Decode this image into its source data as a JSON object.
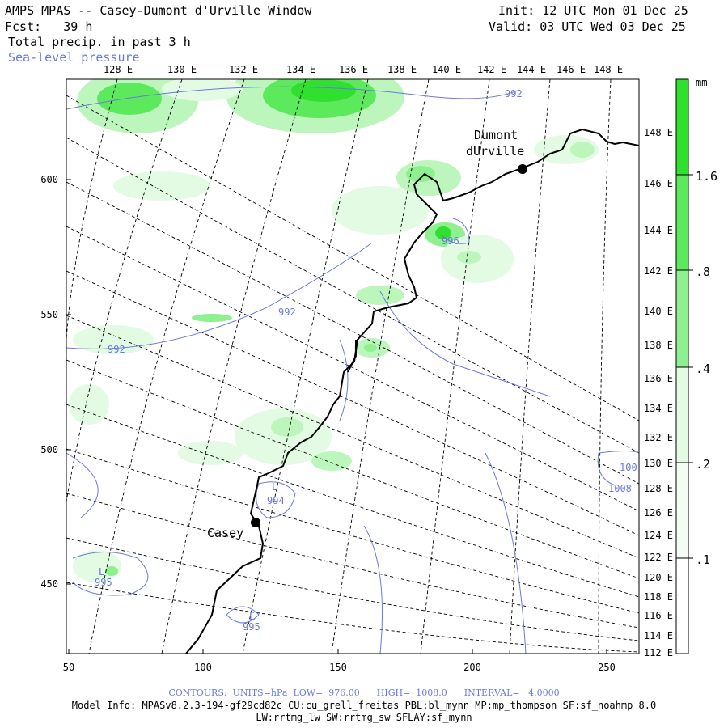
{
  "header": {
    "title": "AMPS MPAS -- Casey-Dumont d'Urville Window",
    "fcst": "Fcst:   39 h",
    "field": "Total precip. in past 3 h",
    "overlay": "Sea-level pressure",
    "init": "Init: 12 UTC Mon 01 Dec 25",
    "valid": "Valid: 03 UTC Wed 03 Dec 25"
  },
  "top_lon_labels": [
    "128 E",
    "130 E",
    "132 E",
    "134 E",
    "136 E",
    "138 E",
    "140 E",
    "142 E",
    "144 E",
    "146 E",
    "148 E"
  ],
  "right_lon_labels": [
    "148 E",
    "146 E",
    "144 E",
    "142 E",
    "140 E",
    "138 E",
    "136 E",
    "134 E",
    "132 E",
    "130 E",
    "128 E",
    "126 E",
    "124 E",
    "122 E",
    "120 E",
    "118 E",
    "116 E",
    "114 E",
    "112 E"
  ],
  "y_axis_labels": [
    "600",
    "550",
    "500",
    "450"
  ],
  "x_axis_labels": [
    "50",
    "100",
    "150",
    "200",
    "250"
  ],
  "colorbar": {
    "unit": "mm",
    "labels": [
      "1.6",
      ".8",
      ".4",
      ".2",
      ".1"
    ],
    "colors": [
      "#2fe02f",
      "#5cea5c",
      "#8ef08e",
      "#bdf6bd",
      "#e2fbe2",
      "#ffffff"
    ]
  },
  "pressure_labels": [
    "992",
    "996",
    "992",
    "992",
    "994",
    "995",
    "995",
    "1008",
    "100"
  ],
  "low_markers": [
    "L",
    "L",
    "L"
  ],
  "stations": [
    {
      "name_line1": "Dumont",
      "name_line2": "dUrville"
    },
    {
      "name_line1": "Casey",
      "name_line2": ""
    }
  ],
  "footer": {
    "contours": "CONTOURS:  UNITS=hPa  LOW=  976.00      HIGH=  1008.0      INTERVAL=   4.0000",
    "model_info": "Model Info: MPASv8.2.3-194-gf29cd82c CU:cu_grell_freitas PBL:bl_mynn MP:mp_thompson SF:sf_noahmp 8.0",
    "model_info2": "LW:rrtmg_lw SW:rrtmg_sw SFLAY:sf_mynn"
  }
}
